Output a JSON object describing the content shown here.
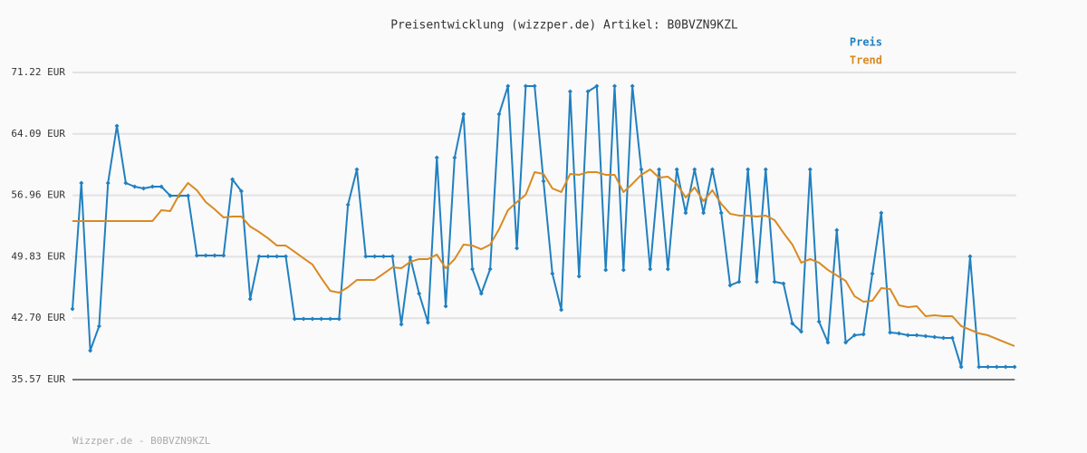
{
  "chart_data": {
    "type": "line",
    "title": "Preisentwicklung (wizzper.de) Artikel: B0BVZN9KZL",
    "footer": "Wizzper.de - B0BVZN9KZL",
    "legend": "top-right",
    "grid": true,
    "ylim": [
      35.57,
      71.22
    ],
    "yticks": [
      {
        "value": 35.57,
        "label": "35.57 EUR"
      },
      {
        "value": 42.7,
        "label": "42.70 EUR"
      },
      {
        "value": 49.83,
        "label": "49.83 EUR"
      },
      {
        "value": 56.96,
        "label": "56.96 EUR"
      },
      {
        "value": 64.09,
        "label": "64.09 EUR"
      },
      {
        "value": 71.22,
        "label": "71.22 EUR"
      }
    ],
    "series": [
      {
        "name": "Preis",
        "color": "#2180c0",
        "markers": true,
        "values": [
          43.77,
          58.39,
          38.94,
          41.78,
          58.39,
          65.02,
          58.39,
          57.97,
          57.76,
          57.97,
          57.97,
          56.92,
          56.92,
          56.92,
          49.98,
          49.98,
          49.98,
          49.98,
          58.81,
          57.44,
          44.93,
          49.87,
          49.87,
          49.87,
          49.87,
          42.62,
          42.62,
          42.62,
          42.62,
          42.62,
          42.62,
          55.87,
          59.97,
          49.87,
          49.87,
          49.87,
          49.87,
          41.98,
          49.77,
          45.56,
          42.2,
          61.34,
          44.09,
          61.34,
          66.38,
          48.4,
          45.56,
          48.4,
          66.38,
          69.64,
          50.82,
          69.64,
          69.64,
          58.6,
          47.87,
          43.67,
          69.01,
          47.56,
          69.01,
          69.64,
          48.3,
          69.64,
          48.3,
          69.64,
          59.97,
          48.4,
          59.97,
          48.4,
          59.97,
          54.92,
          59.97,
          54.92,
          59.97,
          54.92,
          46.51,
          46.93,
          59.97,
          46.93,
          59.97,
          46.93,
          46.72,
          42.09,
          41.14,
          59.97,
          42.3,
          39.88,
          52.92,
          39.88,
          40.72,
          40.83,
          47.87,
          54.92,
          41.04,
          40.93,
          40.72,
          40.72,
          40.62,
          40.51,
          40.41,
          40.41,
          37.04,
          49.87,
          37.04,
          37.04,
          37.04,
          37.04,
          37.04
        ]
      },
      {
        "name": "Trend",
        "color": "#d98a22",
        "markers": false,
        "values": [
          53.97,
          53.97,
          53.97,
          53.97,
          53.97,
          53.97,
          53.97,
          53.97,
          53.97,
          53.97,
          55.24,
          55.13,
          57.02,
          58.39,
          57.55,
          56.18,
          55.34,
          54.39,
          54.5,
          54.5,
          53.34,
          52.71,
          51.98,
          51.13,
          51.13,
          50.4,
          49.66,
          48.93,
          47.35,
          45.88,
          45.67,
          46.3,
          47.14,
          47.14,
          47.14,
          47.87,
          48.61,
          48.5,
          49.24,
          49.56,
          49.56,
          50.08,
          48.5,
          49.56,
          51.24,
          51.13,
          50.71,
          51.24,
          53.03,
          55.24,
          56.18,
          57.02,
          59.65,
          59.44,
          57.76,
          57.34,
          59.44,
          59.34,
          59.65,
          59.65,
          59.34,
          59.34,
          57.34,
          58.29,
          59.34,
          59.97,
          59.02,
          59.13,
          58.29,
          56.71,
          57.87,
          56.29,
          57.55,
          55.97,
          54.82,
          54.61,
          54.61,
          54.5,
          54.61,
          54.08,
          52.61,
          51.24,
          49.14,
          49.56,
          49.14,
          48.3,
          47.66,
          47.03,
          45.25,
          44.61,
          44.72,
          46.19,
          46.09,
          44.19,
          43.98,
          44.09,
          42.93,
          43.04,
          42.93,
          42.93,
          41.78,
          41.36,
          40.93,
          40.72,
          40.3,
          39.88,
          39.46
        ]
      }
    ]
  }
}
